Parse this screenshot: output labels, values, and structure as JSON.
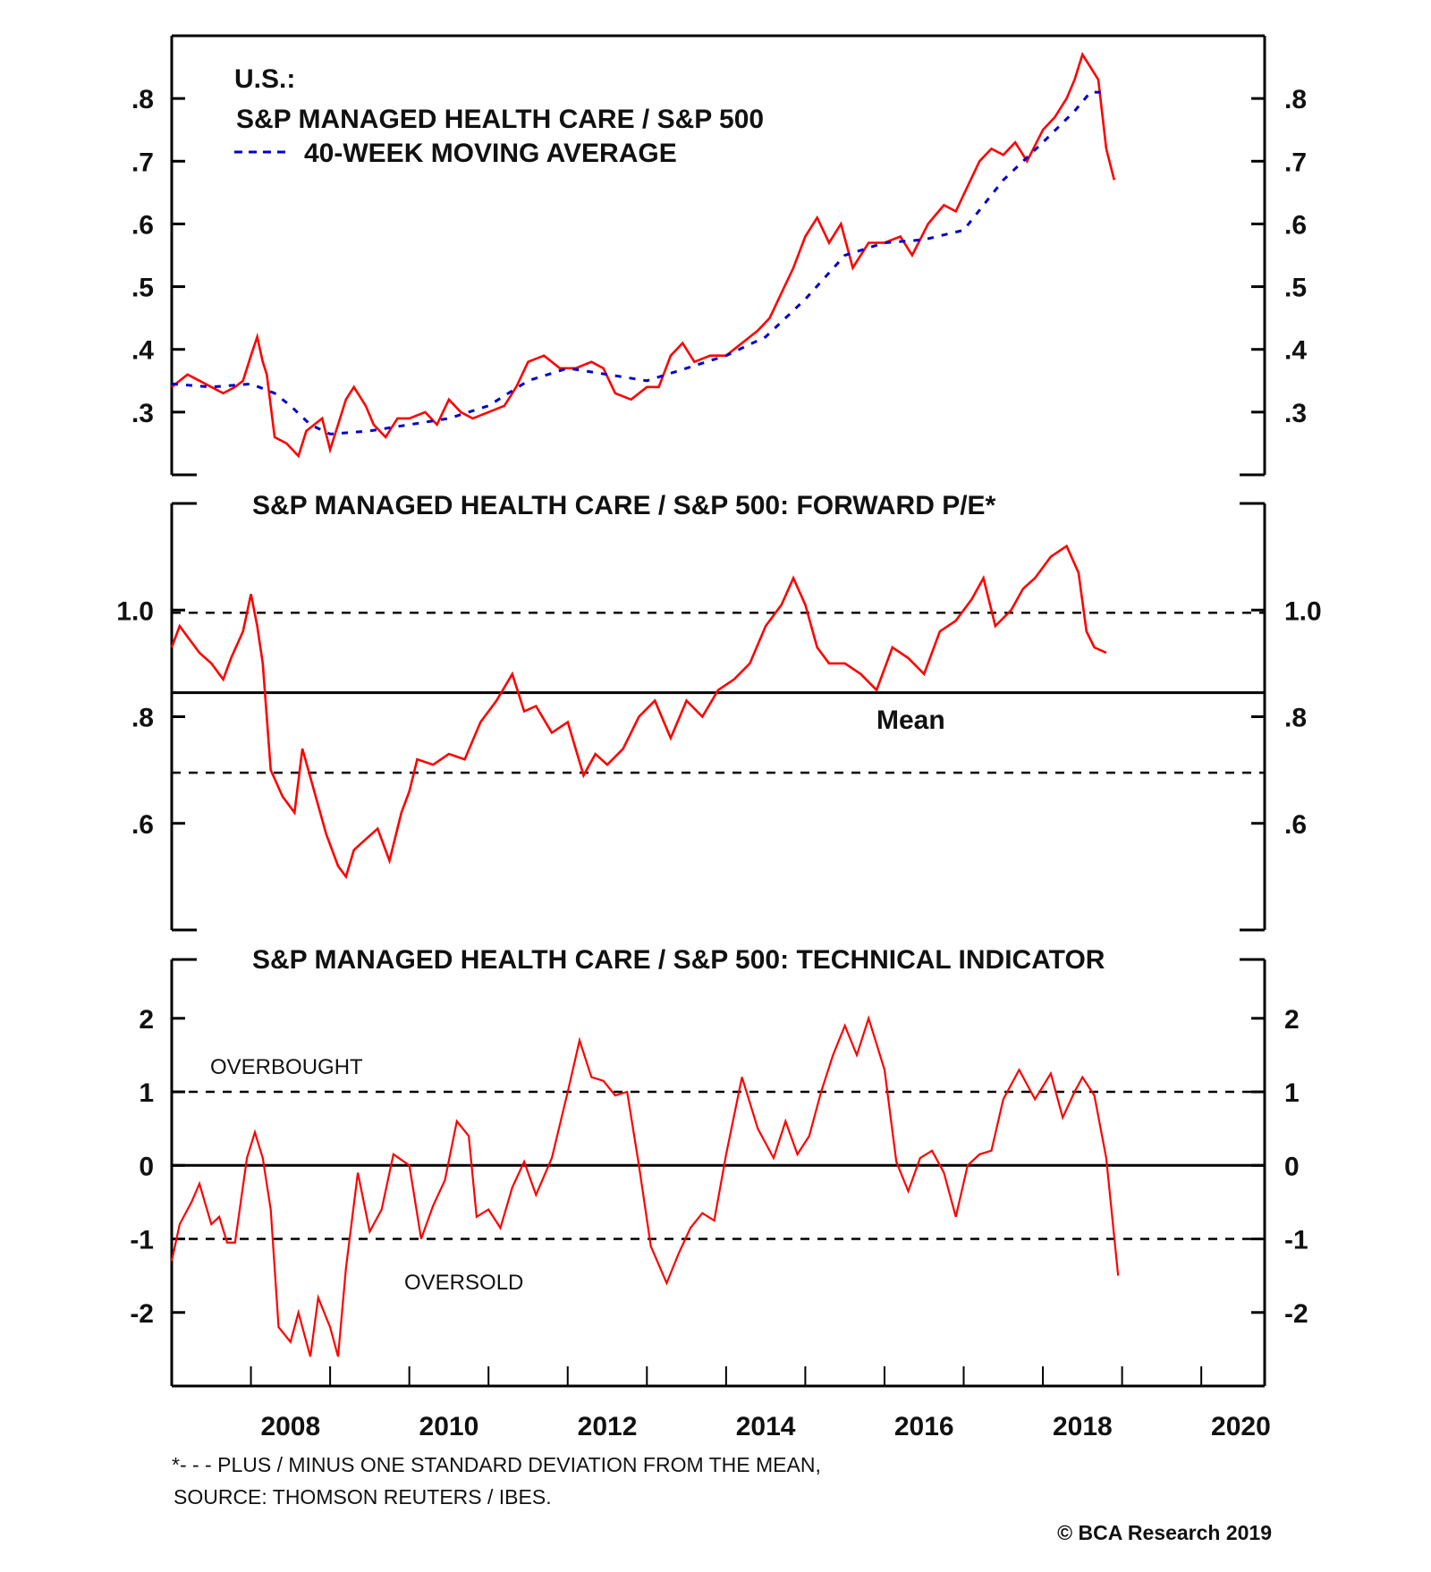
{
  "chart_data": [
    {
      "type": "line",
      "id": "price_ratio",
      "title_lines": [
        "U.S.:",
        "S&P MANAGED HEALTH CARE / S&P 500"
      ],
      "legend": [
        {
          "name": "S&P MANAGED HEALTH CARE / S&P 500",
          "style": "solid",
          "color": "#ff0000"
        },
        {
          "name": "40-WEEK MOVING AVERAGE",
          "style": "dashed",
          "color": "#0000cc"
        }
      ],
      "legend_placement": "top-left",
      "xlim": [
        2007.0,
        2020.8
      ],
      "ylim": [
        0.2,
        0.9
      ],
      "yticks": [
        0.3,
        0.4,
        0.5,
        0.6,
        0.7,
        0.8
      ],
      "ytick_labels": [
        ".3",
        ".4",
        ".5",
        ".6",
        ".7",
        ".8"
      ],
      "series": [
        {
          "name": "S&P MANAGED HEALTH CARE / S&P 500",
          "color": "#ff0000",
          "x": [
            2007.0,
            2007.1,
            2007.2,
            2007.35,
            2007.5,
            2007.65,
            2007.8,
            2007.9,
            2008.0,
            2008.08,
            2008.15,
            2008.2,
            2008.3,
            2008.45,
            2008.6,
            2008.7,
            2008.8,
            2008.9,
            2009.0,
            2009.1,
            2009.2,
            2009.3,
            2009.45,
            2009.55,
            2009.7,
            2009.85,
            2010.0,
            2010.2,
            2010.35,
            2010.5,
            2010.65,
            2010.8,
            2011.0,
            2011.2,
            2011.35,
            2011.5,
            2011.7,
            2011.9,
            2012.1,
            2012.3,
            2012.45,
            2012.6,
            2012.8,
            2013.0,
            2013.15,
            2013.3,
            2013.45,
            2013.6,
            2013.8,
            2014.0,
            2014.2,
            2014.4,
            2014.55,
            2014.7,
            2014.85,
            2015.0,
            2015.15,
            2015.3,
            2015.45,
            2015.6,
            2015.8,
            2016.0,
            2016.2,
            2016.35,
            2016.55,
            2016.75,
            2016.9,
            2017.05,
            2017.2,
            2017.35,
            2017.5,
            2017.65,
            2017.8,
            2018.0,
            2018.15,
            2018.3,
            2018.4,
            2018.5,
            2018.6,
            2018.7,
            2018.8,
            2018.9
          ],
          "y": [
            0.34,
            0.35,
            0.36,
            0.35,
            0.34,
            0.33,
            0.34,
            0.35,
            0.39,
            0.42,
            0.38,
            0.36,
            0.26,
            0.25,
            0.23,
            0.27,
            0.28,
            0.29,
            0.24,
            0.28,
            0.32,
            0.34,
            0.31,
            0.28,
            0.26,
            0.29,
            0.29,
            0.3,
            0.28,
            0.32,
            0.3,
            0.29,
            0.3,
            0.31,
            0.34,
            0.38,
            0.39,
            0.37,
            0.37,
            0.38,
            0.37,
            0.33,
            0.32,
            0.34,
            0.34,
            0.39,
            0.41,
            0.38,
            0.39,
            0.39,
            0.41,
            0.43,
            0.45,
            0.49,
            0.53,
            0.58,
            0.61,
            0.57,
            0.6,
            0.53,
            0.57,
            0.57,
            0.58,
            0.55,
            0.6,
            0.63,
            0.62,
            0.66,
            0.7,
            0.72,
            0.71,
            0.73,
            0.7,
            0.75,
            0.77,
            0.8,
            0.83,
            0.87,
            0.85,
            0.83,
            0.72,
            0.67
          ]
        },
        {
          "name": "40-WEEK MOVING AVERAGE",
          "color": "#0000cc",
          "x": [
            2007.0,
            2007.5,
            2008.0,
            2008.3,
            2008.5,
            2008.75,
            2009.0,
            2009.5,
            2010.0,
            2010.5,
            2011.0,
            2011.5,
            2012.0,
            2012.5,
            2013.0,
            2013.5,
            2014.0,
            2014.5,
            2015.0,
            2015.5,
            2016.0,
            2016.5,
            2017.0,
            2017.5,
            2018.0,
            2018.4,
            2018.6,
            2018.8
          ],
          "y": [
            0.345,
            0.34,
            0.345,
            0.33,
            0.31,
            0.28,
            0.265,
            0.27,
            0.28,
            0.29,
            0.31,
            0.35,
            0.37,
            0.36,
            0.35,
            0.37,
            0.39,
            0.42,
            0.48,
            0.55,
            0.57,
            0.575,
            0.59,
            0.67,
            0.73,
            0.78,
            0.81,
            0.81
          ]
        }
      ]
    },
    {
      "type": "line",
      "id": "forward_pe",
      "title": "S&P MANAGED HEALTH CARE / S&P 500: FORWARD P/E*",
      "xlim": [
        2007.0,
        2020.8
      ],
      "ylim": [
        0.4,
        1.2
      ],
      "yticks": [
        0.6,
        0.8,
        1.0
      ],
      "ytick_labels": [
        ".6",
        ".8",
        "1.0"
      ],
      "reference_lines": [
        {
          "name": "plus-one-sd",
          "value": 0.995,
          "style": "dashed"
        },
        {
          "name": "mean",
          "value": 0.845,
          "style": "solid",
          "label": "Mean"
        },
        {
          "name": "minus-one-sd",
          "value": 0.695,
          "style": "dashed"
        }
      ],
      "series": [
        {
          "name": "Forward P/E relative",
          "color": "#ff0000",
          "x": [
            2007.0,
            2007.1,
            2007.2,
            2007.35,
            2007.5,
            2007.65,
            2007.75,
            2007.9,
            2008.0,
            2008.08,
            2008.15,
            2008.25,
            2008.4,
            2008.55,
            2008.65,
            2008.8,
            2008.95,
            2009.1,
            2009.2,
            2009.3,
            2009.45,
            2009.6,
            2009.75,
            2009.9,
            2010.0,
            2010.1,
            2010.3,
            2010.5,
            2010.7,
            2010.9,
            2011.1,
            2011.3,
            2011.45,
            2011.6,
            2011.8,
            2012.0,
            2012.2,
            2012.35,
            2012.5,
            2012.7,
            2012.9,
            2013.1,
            2013.3,
            2013.5,
            2013.7,
            2013.9,
            2014.1,
            2014.3,
            2014.5,
            2014.7,
            2014.85,
            2015.0,
            2015.15,
            2015.3,
            2015.5,
            2015.7,
            2015.9,
            2016.1,
            2016.3,
            2016.5,
            2016.7,
            2016.9,
            2017.1,
            2017.25,
            2017.4,
            2017.6,
            2017.75,
            2017.9,
            2018.1,
            2018.3,
            2018.45,
            2018.55,
            2018.65,
            2018.8
          ],
          "y": [
            0.93,
            0.97,
            0.95,
            0.92,
            0.9,
            0.87,
            0.91,
            0.96,
            1.03,
            0.97,
            0.9,
            0.7,
            0.65,
            0.62,
            0.74,
            0.66,
            0.58,
            0.52,
            0.5,
            0.55,
            0.57,
            0.59,
            0.53,
            0.62,
            0.66,
            0.72,
            0.71,
            0.73,
            0.72,
            0.79,
            0.83,
            0.88,
            0.81,
            0.82,
            0.77,
            0.79,
            0.69,
            0.73,
            0.71,
            0.74,
            0.8,
            0.83,
            0.76,
            0.83,
            0.8,
            0.85,
            0.87,
            0.9,
            0.97,
            1.01,
            1.06,
            1.01,
            0.93,
            0.9,
            0.9,
            0.88,
            0.85,
            0.93,
            0.91,
            0.88,
            0.96,
            0.98,
            1.02,
            1.06,
            0.97,
            1.0,
            1.04,
            1.06,
            1.1,
            1.12,
            1.07,
            0.96,
            0.93,
            0.92
          ]
        }
      ]
    },
    {
      "type": "line",
      "id": "technical_indicator",
      "title": "S&P MANAGED HEALTH CARE / S&P 500: TECHNICAL INDICATOR",
      "xlim": [
        2007.0,
        2020.8
      ],
      "ylim": [
        -3.0,
        2.8
      ],
      "yticks": [
        -2,
        -1,
        0,
        1,
        2
      ],
      "ytick_labels": [
        "-2",
        "-1",
        "0",
        "1",
        "2"
      ],
      "xticks_labeled": [
        2008,
        2010,
        2012,
        2014,
        2016,
        2018,
        2020
      ],
      "xtick_labels": [
        "2008",
        "2010",
        "2012",
        "2014",
        "2016",
        "2018",
        "2020"
      ],
      "reference_lines": [
        {
          "name": "overbought",
          "value": 1,
          "style": "dashed"
        },
        {
          "name": "zero",
          "value": 0,
          "style": "solid"
        },
        {
          "name": "oversold",
          "value": -1,
          "style": "dashed"
        }
      ],
      "annotations": [
        {
          "text": "OVERBOUGHT",
          "near_value": 1.5
        },
        {
          "text": "OVERSOLD",
          "near_value": -1.5
        }
      ],
      "series": [
        {
          "name": "Technical indicator",
          "color": "#ff0000",
          "x": [
            2007.0,
            2007.1,
            2007.25,
            2007.35,
            2007.5,
            2007.6,
            2007.7,
            2007.8,
            2007.95,
            2008.05,
            2008.15,
            2008.25,
            2008.35,
            2008.5,
            2008.6,
            2008.75,
            2008.85,
            2009.0,
            2009.1,
            2009.2,
            2009.35,
            2009.5,
            2009.65,
            2009.8,
            2010.0,
            2010.15,
            2010.3,
            2010.45,
            2010.6,
            2010.75,
            2010.85,
            2011.0,
            2011.15,
            2011.3,
            2011.45,
            2011.6,
            2011.8,
            2012.0,
            2012.15,
            2012.3,
            2012.45,
            2012.6,
            2012.75,
            2012.9,
            2013.05,
            2013.25,
            2013.4,
            2013.55,
            2013.7,
            2013.85,
            2014.0,
            2014.2,
            2014.4,
            2014.6,
            2014.75,
            2014.9,
            2015.05,
            2015.2,
            2015.35,
            2015.5,
            2015.65,
            2015.8,
            2016.0,
            2016.15,
            2016.3,
            2016.45,
            2016.6,
            2016.75,
            2016.9,
            2017.05,
            2017.2,
            2017.35,
            2017.5,
            2017.7,
            2017.9,
            2018.1,
            2018.25,
            2018.4,
            2018.5,
            2018.65,
            2018.8,
            2018.95
          ],
          "y": [
            -1.3,
            -0.8,
            -0.5,
            -0.25,
            -0.8,
            -0.7,
            -1.05,
            -1.05,
            0.1,
            0.45,
            0.1,
            -0.6,
            -2.2,
            -2.4,
            -2.0,
            -2.6,
            -1.8,
            -2.2,
            -2.6,
            -1.4,
            -0.1,
            -0.9,
            -0.6,
            0.15,
            0.0,
            -1.0,
            -0.55,
            -0.2,
            0.6,
            0.4,
            -0.7,
            -0.6,
            -0.85,
            -0.3,
            0.05,
            -0.4,
            0.1,
            1.0,
            1.7,
            1.2,
            1.15,
            0.95,
            1.0,
            0.0,
            -1.1,
            -1.6,
            -1.2,
            -0.85,
            -0.65,
            -0.75,
            0.15,
            1.2,
            0.5,
            0.1,
            0.6,
            0.15,
            0.4,
            1.0,
            1.5,
            1.9,
            1.5,
            2.0,
            1.3,
            0.05,
            -0.35,
            0.1,
            0.2,
            -0.1,
            -0.7,
            0.0,
            0.15,
            0.2,
            0.9,
            1.3,
            0.9,
            1.25,
            0.65,
            1.0,
            1.2,
            0.95,
            0.1,
            -1.5
          ]
        }
      ]
    }
  ],
  "footer": {
    "note": "*- - - PLUS / MINUS ONE STANDARD DEVIATION FROM THE MEAN,",
    "source": "SOURCE: THOMSON REUTERS / IBES.",
    "copyright": "© BCA Research 2019"
  },
  "colors": {
    "series": "#ff0000",
    "moving_average": "#0000cc",
    "axis": "#000000"
  }
}
